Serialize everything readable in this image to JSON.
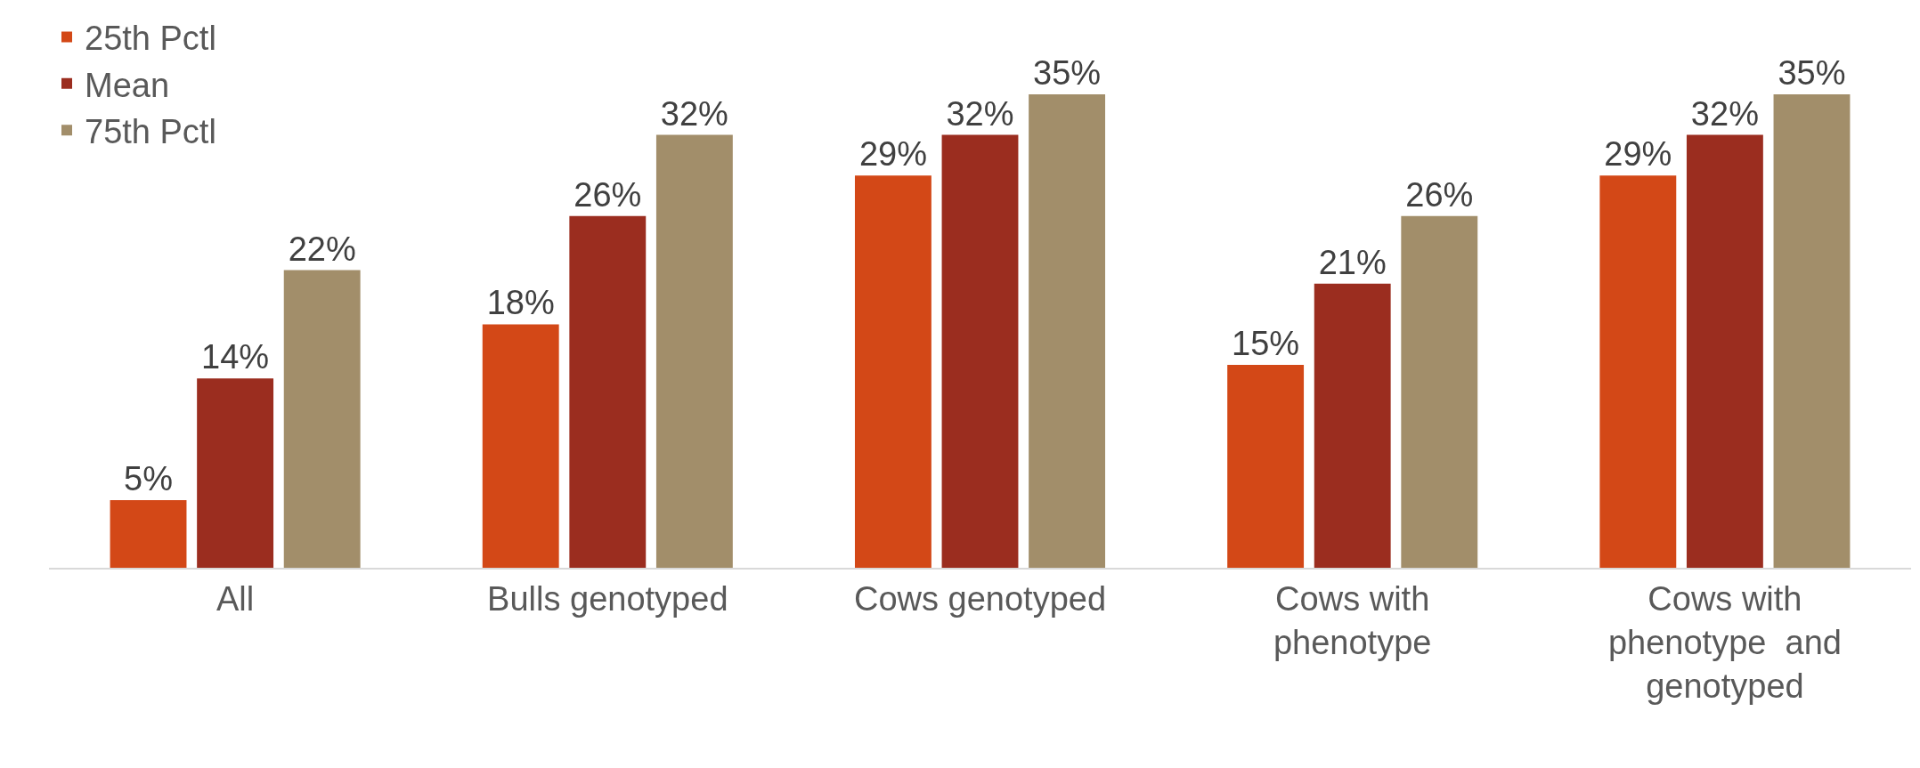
{
  "chart_data": {
    "type": "bar",
    "categories": [
      "All",
      "Bulls genotyped",
      "Cows genotyped",
      "Cows with phenotype",
      "Cows with phenotype  and genotyped"
    ],
    "series": [
      {
        "name": "25th Pctl",
        "color": "#d34817",
        "values": [
          5,
          18,
          29,
          15,
          29
        ],
        "value_labels": [
          "5%",
          "18%",
          "29%",
          "15%",
          "29%"
        ]
      },
      {
        "name": "Mean",
        "color": "#9b2d1f",
        "values": [
          14,
          26,
          32,
          21,
          32
        ],
        "value_labels": [
          "14%",
          "26%",
          "32%",
          "21%",
          "32%"
        ]
      },
      {
        "name": "75th Pctl",
        "color": "#a28e6a",
        "values": [
          22,
          32,
          35,
          26,
          35
        ],
        "value_labels": [
          "22%",
          "32%",
          "35%",
          "26%",
          "35%"
        ]
      }
    ],
    "legend": "top left",
    "grid": false
  }
}
